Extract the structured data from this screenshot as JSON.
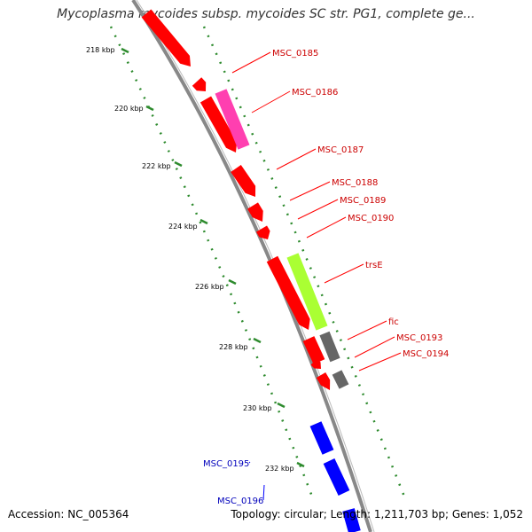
{
  "title": "Mycoplasma mycoides subsp. mycoides SC str. PG1, complete ge...",
  "accession": "Accession: NC_005364",
  "summary": "Topology: circular; Length: 1,211,703 bp; Genes: 1,052",
  "colors": {
    "backbone": "#888888",
    "ruler": "#2e8b2e",
    "forward_gene": "#ff0000",
    "forward_label": "#cc0000",
    "reverse_gene": "#0000ff",
    "reverse_label": "#0000bb",
    "highlight_magenta": "#ff3fb0",
    "highlight_lime": "#aaff33",
    "gray_gene": "#666666"
  },
  "ruler_labels": [
    "218 kbp",
    "220 kbp",
    "222 kbp",
    "224 kbp",
    "226 kbp",
    "228 kbp",
    "230 kbp",
    "232 kbp"
  ],
  "gene_labels": [
    {
      "text": "MSC_0185",
      "strand": "forward"
    },
    {
      "text": "MSC_0186",
      "strand": "forward"
    },
    {
      "text": "MSC_0187",
      "strand": "forward"
    },
    {
      "text": "MSC_0188",
      "strand": "forward"
    },
    {
      "text": "MSC_0189",
      "strand": "forward"
    },
    {
      "text": "MSC_0190",
      "strand": "forward"
    },
    {
      "text": "trsE",
      "strand": "forward"
    },
    {
      "text": "fic",
      "strand": "forward"
    },
    {
      "text": "MSC_0193",
      "strand": "forward"
    },
    {
      "text": "MSC_0194",
      "strand": "forward"
    },
    {
      "text": "MSC_0195",
      "strand": "reverse"
    },
    {
      "text": "MSC_0196",
      "strand": "reverse"
    }
  ]
}
